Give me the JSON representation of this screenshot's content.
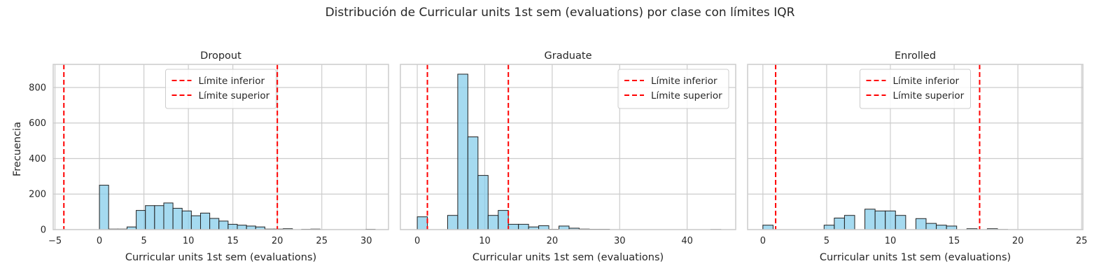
{
  "figure": {
    "suptitle": "Distribución de Curricular units 1st sem (evaluations) por clase con límites IQR",
    "shared_ylabel": "Frecuencia"
  },
  "colors": {
    "bar_fill": "#87CEEB",
    "bar_edge": "#222222",
    "limit_line": "#ff0000",
    "grid": "#cccccc",
    "frame": "#cccccc"
  },
  "chart_data": [
    {
      "type": "bar",
      "title": "Dropout",
      "xlabel": "Curricular units 1st sem (evaluations)",
      "ylabel": "Frecuencia",
      "xlim": [
        -5.2,
        32.5
      ],
      "ylim": [
        0,
        930
      ],
      "xticks": [
        -5,
        0,
        5,
        10,
        15,
        20,
        25,
        30
      ],
      "yticks": [
        0,
        200,
        400,
        600,
        800
      ],
      "grid": true,
      "legend_position": "top-center",
      "legend": [
        {
          "label": "Límite inferior",
          "x": -4
        },
        {
          "label": "Límite superior",
          "x": 20
        }
      ],
      "bins": {
        "start": 0,
        "width": 1.0333,
        "counts": [
          250,
          3,
          3,
          15,
          108,
          135,
          135,
          150,
          120,
          105,
          78,
          93,
          63,
          48,
          30,
          25,
          20,
          15,
          3,
          3,
          5,
          0,
          2,
          3,
          0,
          0,
          0,
          0,
          0,
          2
        ]
      }
    },
    {
      "type": "bar",
      "title": "Graduate",
      "xlabel": "Curricular units 1st sem (evaluations)",
      "ylabel": "",
      "xlim": [
        -2.5,
        47.2
      ],
      "ylim": [
        0,
        930
      ],
      "xticks": [
        0,
        10,
        20,
        30,
        40
      ],
      "yticks": [
        0,
        200,
        400,
        600,
        800
      ],
      "grid": true,
      "legend_position": "top-right",
      "legend": [
        {
          "label": "Límite inferior",
          "x": 1.5
        },
        {
          "label": "Límite superior",
          "x": 13.5
        }
      ],
      "bins": {
        "start": 0,
        "width": 1.5,
        "counts": [
          72,
          0,
          0,
          80,
          875,
          522,
          305,
          80,
          108,
          30,
          30,
          15,
          22,
          2,
          20,
          8,
          3,
          2,
          2,
          0,
          0,
          0,
          0,
          0,
          0,
          0,
          0,
          0,
          0,
          1
        ]
      }
    },
    {
      "type": "bar",
      "title": "Enrolled",
      "xlabel": "Curricular units 1st sem (evaluations)",
      "ylabel": "",
      "xlim": [
        -1.2,
        25.1
      ],
      "ylim": [
        0,
        930
      ],
      "xticks": [
        0,
        5,
        10,
        15,
        20,
        25
      ],
      "yticks": [
        0,
        200,
        400,
        600,
        800
      ],
      "grid": true,
      "legend_position": "top-center",
      "legend": [
        {
          "label": "Límite inferior",
          "x": 1
        },
        {
          "label": "Límite superior",
          "x": 17
        }
      ],
      "bins": {
        "start": 0,
        "width": 0.8,
        "counts": [
          25,
          0,
          0,
          0,
          0,
          0,
          25,
          65,
          80,
          0,
          115,
          105,
          105,
          80,
          0,
          62,
          35,
          25,
          20,
          0,
          5,
          0,
          5,
          1,
          0,
          0,
          0,
          0,
          0,
          0
        ]
      }
    }
  ]
}
